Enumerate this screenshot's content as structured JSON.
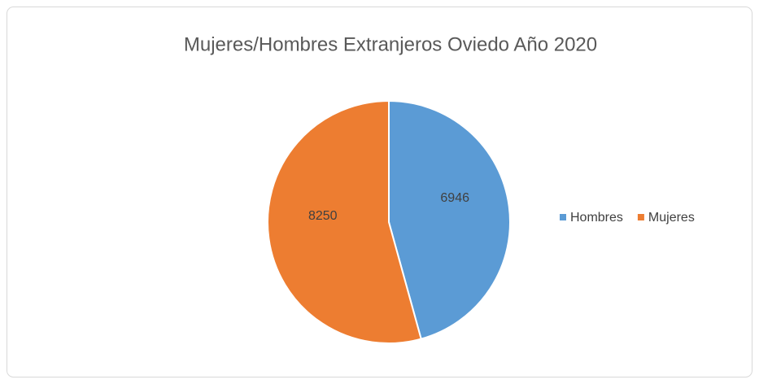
{
  "chart_data": {
    "type": "pie",
    "title": "Mujeres/Hombres Extranjeros Oviedo Año 2020",
    "categories": [
      "Hombres",
      "Mujeres"
    ],
    "values": [
      6946,
      8250
    ],
    "colors": [
      "#5b9bd5",
      "#ed7d31"
    ],
    "legend": "right"
  }
}
